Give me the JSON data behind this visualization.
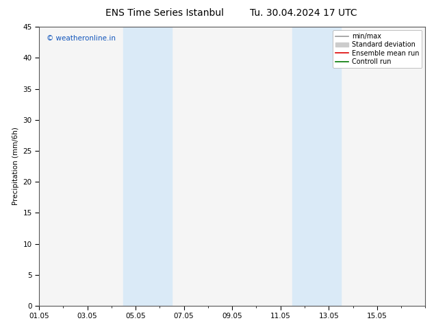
{
  "title_left": "ENS Time Series Istanbul",
  "title_right": "Tu. 30.04.2024 17 UTC",
  "ylabel": "Precipitation (mm/6h)",
  "ylim": [
    0,
    45
  ],
  "yticks": [
    0,
    5,
    10,
    15,
    20,
    25,
    30,
    35,
    40,
    45
  ],
  "xlim": [
    0,
    15.5
  ],
  "xtick_labels": [
    "01.05",
    "03.05",
    "05.05",
    "07.05",
    "09.05",
    "11.05",
    "13.05",
    "15.05"
  ],
  "xtick_positions_days": [
    0,
    2,
    4,
    6,
    8,
    10,
    12,
    14
  ],
  "shaded_regions": [
    {
      "start_day": 3.5,
      "end_day": 5.5
    },
    {
      "start_day": 10.5,
      "end_day": 12.5
    }
  ],
  "shade_color": "#daeaf7",
  "watermark_text": "© weatheronline.in",
  "watermark_color": "#1155bb",
  "legend_entries": [
    {
      "label": "min/max",
      "color": "#999999",
      "lw": 1.2,
      "style": "-"
    },
    {
      "label": "Standard deviation",
      "color": "#cccccc",
      "lw": 5,
      "style": "-"
    },
    {
      "label": "Ensemble mean run",
      "color": "#dd0000",
      "lw": 1.2,
      "style": "-"
    },
    {
      "label": "Controll run",
      "color": "#007700",
      "lw": 1.2,
      "style": "-"
    }
  ],
  "bg_color": "#ffffff",
  "plot_bg_color": "#f5f5f5",
  "axis_color": "#555555",
  "title_fontsize": 10,
  "label_fontsize": 7.5,
  "tick_fontsize": 7.5,
  "legend_fontsize": 7,
  "watermark_fontsize": 7.5
}
